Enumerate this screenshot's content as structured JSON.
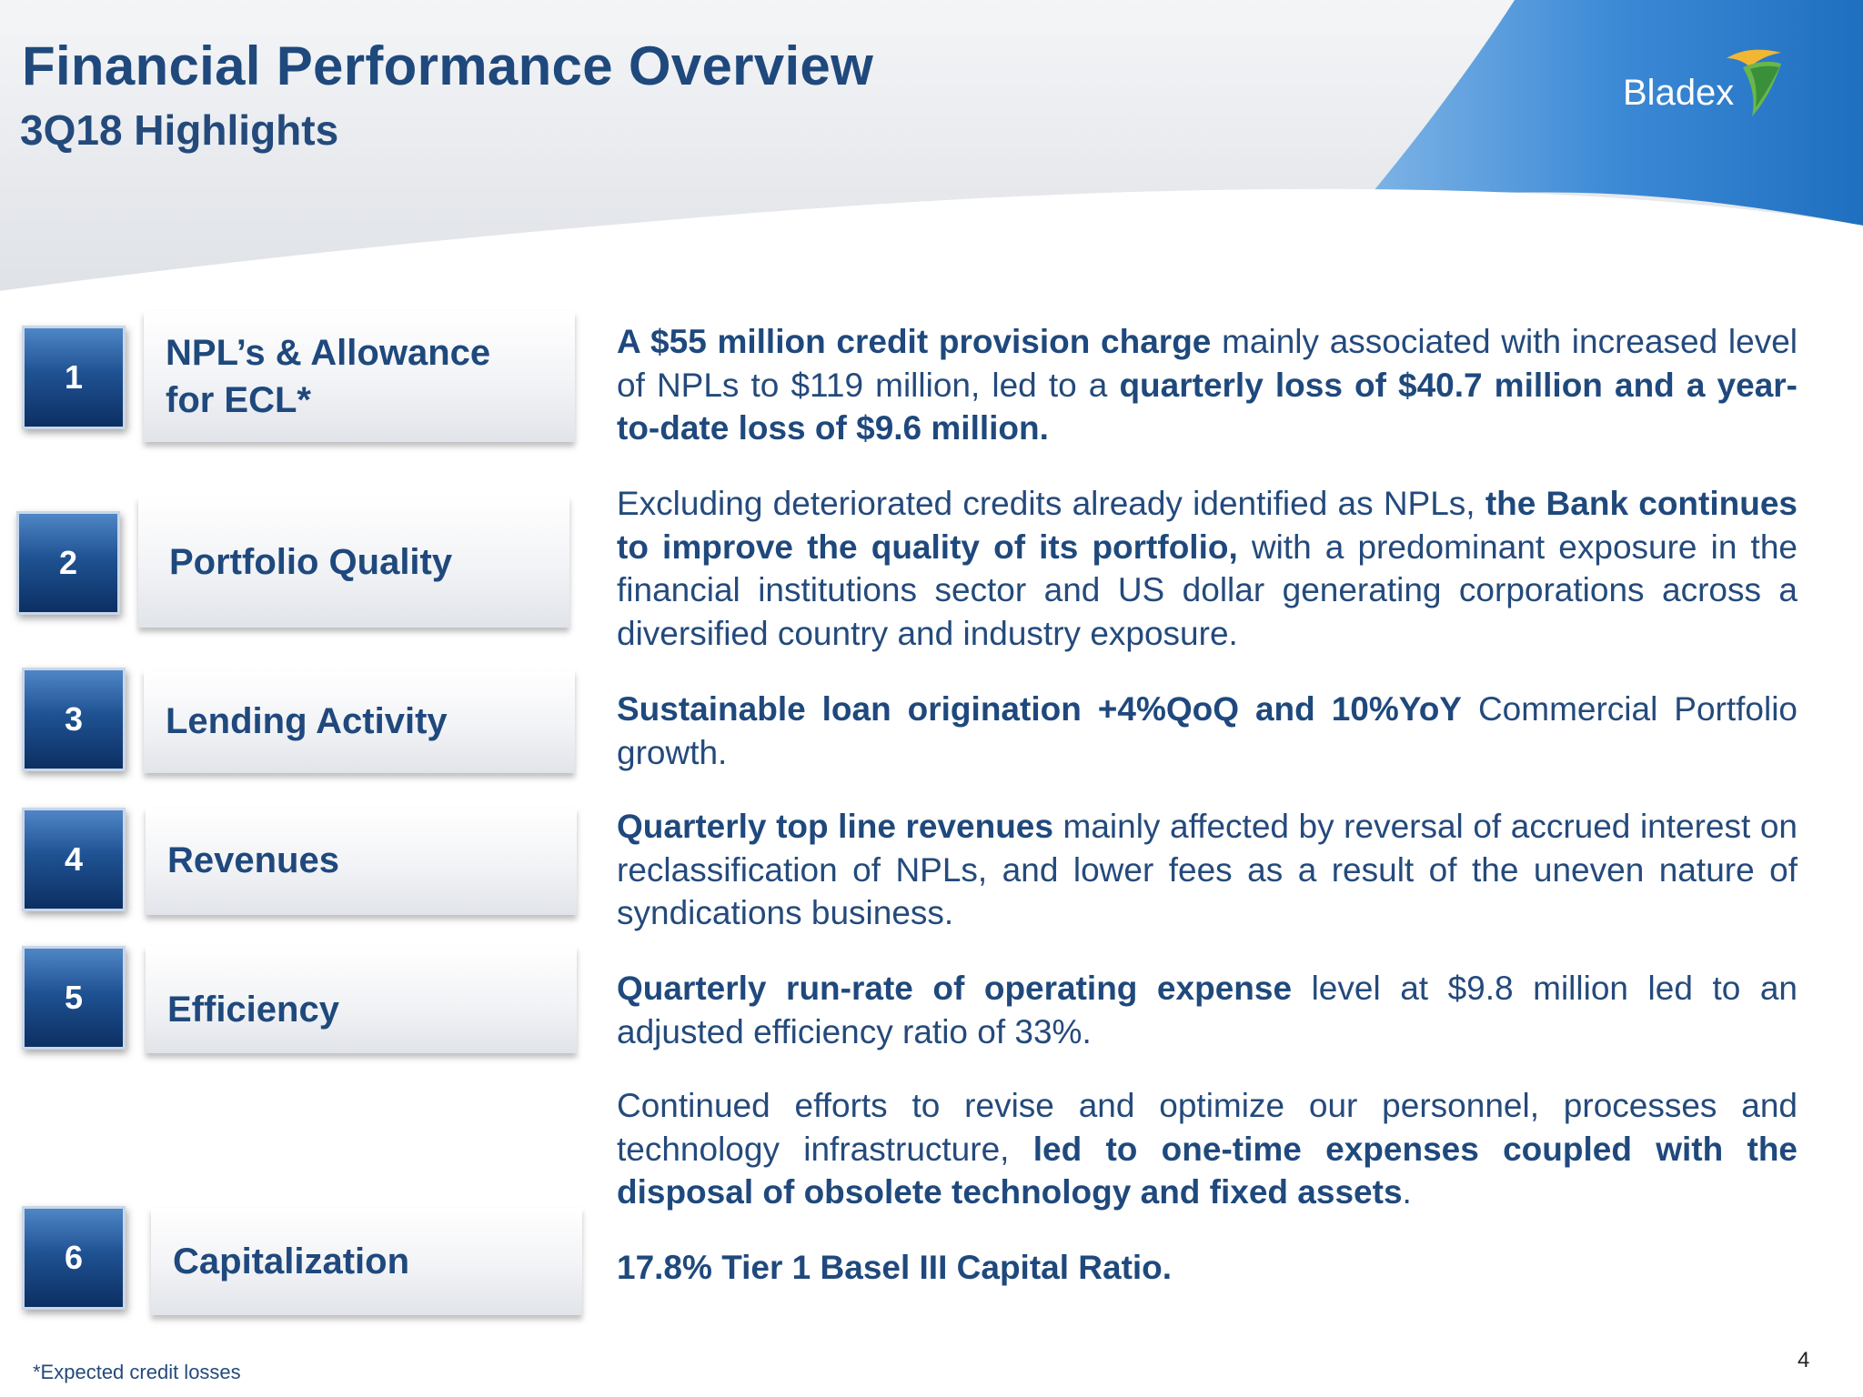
{
  "header": {
    "title": "Financial Performance Overview",
    "subtitle": "3Q18 Highlights",
    "logo_text": "Bladex"
  },
  "colors": {
    "title": "#1f497d",
    "body_text": "#244a7c",
    "number_box_top": "#4f86c6",
    "number_box_bottom": "#0c2f63",
    "header_swoosh": "#2a7fce"
  },
  "items": [
    {
      "number": "1",
      "label_line1": "NPL’s & Allowance",
      "label_line2": "for ECL*"
    },
    {
      "number": "2",
      "label": "Portfolio Quality"
    },
    {
      "number": "3",
      "label": "Lending Activity"
    },
    {
      "number": "4",
      "label": "Revenues"
    },
    {
      "number": "5",
      "label": "Efficiency"
    },
    {
      "number": "6",
      "label": "Capitalization"
    }
  ],
  "paragraphs": {
    "p1": {
      "b1": "A $55 million credit provision charge",
      "t1": " mainly associated with increased level of NPLs to $119 million, led to a ",
      "b2": "quarterly loss of $40.7 million and a year-to-date loss of $9.6 million."
    },
    "p2": {
      "t1": "Excluding deteriorated credits already identified as NPLs, ",
      "b1": "the Bank continues to improve the quality of its portfolio,",
      "t2": " with a predominant exposure in the financial institutions sector and US dollar generating corporations across a diversified country and industry exposure."
    },
    "p3": {
      "b1": "Sustainable loan origination +4%QoQ and 10%YoY",
      "t1": " Commercial Portfolio growth."
    },
    "p4": {
      "b1": "Quarterly top line revenues",
      "t1": " mainly affected by reversal of accrued interest on reclassification of NPLs, and lower fees as a result of the uneven nature of syndications business."
    },
    "p5": {
      "b1": "Quarterly run-rate of operating expense",
      "t1": " level at $9.8 million led to an adjusted efficiency ratio of 33%."
    },
    "p6": {
      "t1": "Continued efforts to revise and optimize our personnel, processes and technology infrastructure, ",
      "b1": "led to one-time expenses coupled with the disposal of obsolete technology and fixed assets",
      "t2": "."
    },
    "p7": {
      "b1": "17.8% Tier 1 Basel III Capital Ratio."
    }
  },
  "footer": {
    "footnote": "*Expected credit losses",
    "page_number": "4"
  }
}
